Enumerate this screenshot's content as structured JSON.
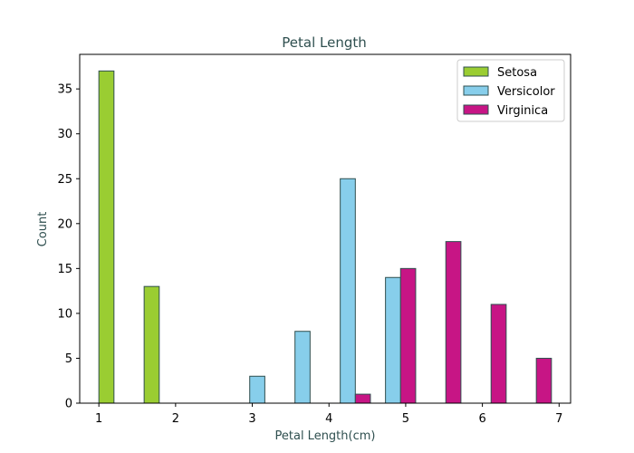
{
  "chart_data": {
    "type": "bar",
    "title": "Petal Length",
    "xlabel": "Petal Length(cm)",
    "ylabel": "Count",
    "xlim": [
      0.75,
      7.15
    ],
    "ylim": [
      0,
      38.85
    ],
    "xticks": [
      1,
      2,
      3,
      4,
      5,
      6,
      7
    ],
    "yticks": [
      0,
      5,
      10,
      15,
      20,
      25,
      30,
      35
    ],
    "grid": false,
    "legend_position": "top-right",
    "bin_edges": [
      1.0,
      1.59,
      2.18,
      2.77,
      3.36,
      3.95,
      4.54,
      5.13,
      5.72,
      6.31,
      6.9
    ],
    "series": [
      {
        "name": "Setosa",
        "color": "#9ACD32",
        "edgecolor": "#2F4F4F",
        "values": [
          37,
          13,
          0,
          0,
          0,
          0,
          0,
          0,
          0,
          0
        ]
      },
      {
        "name": "Versicolor",
        "color": "#87CEEB",
        "edgecolor": "#2F4F4F",
        "values": [
          0,
          0,
          0,
          3,
          8,
          25,
          14,
          0,
          0,
          0
        ]
      },
      {
        "name": "Virginica",
        "color": "#C71585",
        "edgecolor": "#2F4F4F",
        "values": [
          0,
          0,
          0,
          0,
          0,
          1,
          15,
          18,
          11,
          5
        ]
      }
    ]
  }
}
